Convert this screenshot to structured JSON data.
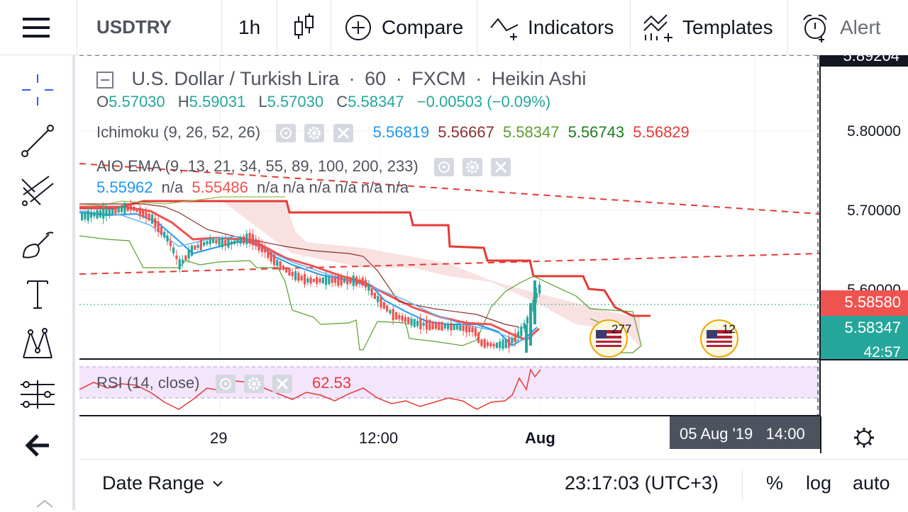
{
  "toolbar": {
    "symbol": "USDTRY",
    "interval": "1h",
    "compare": "Compare",
    "indicators": "Indicators",
    "templates": "Templates",
    "alert": "Alert"
  },
  "legend": {
    "title": "U.S. Dollar / Turkish Lira",
    "sep1": "·",
    "interval": "60",
    "sep2": "·",
    "exchange": "FXCM",
    "sep3": "·",
    "style": "Heikin Ashi",
    "o_label": "O",
    "o_val": "5.57030",
    "h_label": "H",
    "h_val": "5.59031",
    "l_label": "L",
    "l_val": "5.57030",
    "c_label": "C",
    "c_val": "5.58347",
    "change": "−0.00503 (−0.09%)"
  },
  "ichimoku": {
    "name": "Ichimoku (9, 26, 52, 26)",
    "v1": "5.56819",
    "v2": "5.56667",
    "v3": "5.58347",
    "v4": "5.56743",
    "v5": "5.56829"
  },
  "ema": {
    "name": "AIO EMA (9, 13, 21, 34, 55, 89, 100, 200, 233)",
    "v1": "5.55962",
    "n1": "n/a",
    "v2": "5.55486",
    "rest": "n/a n/a n/a n/a n/a n/a"
  },
  "rsi": {
    "name": "RSI (14, close)",
    "value": "62.53"
  },
  "price_scale": {
    "top_partial": "5.89204",
    "p1": "5.80000",
    "p2": "5.70000",
    "p3": "5.60000",
    "bid": "5.58580",
    "last": "5.58347",
    "countdown": "42:57"
  },
  "events": {
    "e1": "277",
    "e2": "12"
  },
  "time_axis": {
    "t1": "29",
    "t2": "12:00",
    "t3": "Aug",
    "crosshair": "05 Aug '19   14:00"
  },
  "bottom": {
    "date_range": "Date Range",
    "clock": "23:17:03 (UTC+3)",
    "percent": "%",
    "log": "log",
    "auto": "auto"
  },
  "colors": {
    "up": "#26a69a",
    "down": "#ef5350",
    "cloud": "#f8dcdc",
    "rsi_band": "#f3e5fb",
    "blue": "#2196f3",
    "darkred": "#8b2f2f",
    "green": "#5b9e2f"
  }
}
